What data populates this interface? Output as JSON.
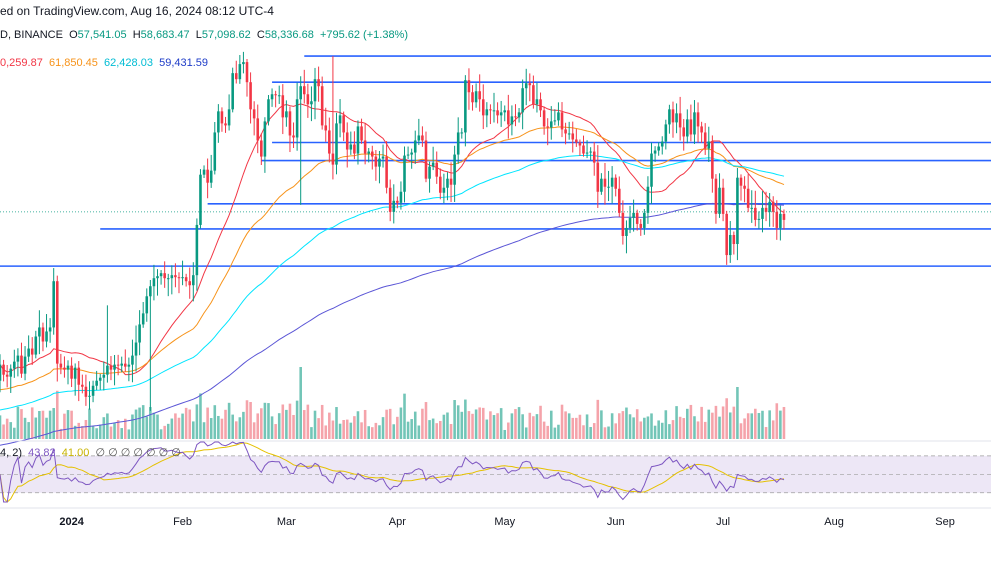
{
  "header": {
    "published": "ed on TradingView.com, Aug 16, 2024 08:12 UTC-4",
    "symbol_exchange": "D, BINANCE",
    "o_label": "O",
    "o_val": "57,541.05",
    "h_label": "H",
    "h_val": "58,683.47",
    "l_label": "L",
    "l_val": "57,098.62",
    "c_label": "C",
    "c_val": "58,336.68",
    "change": "+795.62 (+1.38%)",
    "ma1": "0,259.87",
    "ma2": "61,850.45",
    "ma3": "62,428.03",
    "ma4": "59,431.59"
  },
  "rsi": {
    "label": "4, 2)",
    "val1": "43.82",
    "val2": "41.00",
    "glyphs": "∅ ∅ ∅ ∅ ∅ ∅ ∅"
  },
  "colors": {
    "up": "#089981",
    "down": "#f23645",
    "ma_red": "#f23645",
    "ma_orange": "#f7931a",
    "ma_cyan": "#00e5ff",
    "ma_blue": "#5b56d6",
    "hline": "#2962ff",
    "rsi": "#7e57c2",
    "rsi_ma": "#e5c100"
  },
  "chart_data": {
    "type": "candlestick",
    "x_axis": {
      "labels": [
        "2024",
        "Feb",
        "Mar",
        "Apr",
        "May",
        "Jun",
        "Jul",
        "Aug",
        "Sep"
      ],
      "dates": [
        "2024-01-01",
        "2024-02-01",
        "2024-03-01",
        "2024-04-01",
        "2024-05-01",
        "2024-06-01",
        "2024-07-01",
        "2024-08-01",
        "2024-09-01"
      ],
      "range": [
        "2023-12-12",
        "2024-09-13"
      ]
    },
    "y_range": [
      36000,
      75000
    ],
    "horizontal_levels": [
      {
        "price": 73800,
        "from": "2024-03-06"
      },
      {
        "price": 71200,
        "from": "2024-02-26"
      },
      {
        "price": 65200,
        "from": "2024-02-26"
      },
      {
        "price": 63400,
        "from": "2024-02-23"
      },
      {
        "price": 59100,
        "from": "2024-02-08"
      },
      {
        "price": 56600,
        "from": "2024-01-09"
      },
      {
        "price": 52900,
        "from": "2023-12-12"
      }
    ],
    "closes": [
      43100,
      42100,
      41900,
      42700,
      43400,
      44000,
      42200,
      43900,
      44700,
      44100,
      45900,
      46800,
      45400,
      46400,
      46800,
      51400,
      43200,
      42800,
      42600,
      43000,
      41700,
      42800,
      41100,
      40900,
      39900,
      40000,
      41000,
      41500,
      41800,
      42100,
      43000,
      42600,
      43100,
      43000,
      43200,
      42900,
      43100,
      44000,
      45300,
      47100,
      48200,
      49900,
      50900,
      51700,
      51900,
      52200,
      51700,
      51700,
      52000,
      51800,
      51700,
      51800,
      51400,
      51000,
      52000,
      57000,
      62000,
      62500,
      61200,
      62400,
      66200,
      68300,
      67100,
      66900,
      68500,
      72100,
      71500,
      73000,
      73200,
      71200,
      68500,
      67600,
      65400,
      63800,
      67300,
      69500,
      70000,
      69900,
      69900,
      67700,
      68300,
      65900,
      65700,
      69500,
      70800,
      70000,
      69000,
      69300,
      71500,
      70800,
      66900,
      66400,
      64100,
      63000,
      67100,
      67900,
      66200,
      64500,
      65000,
      64100,
      66800,
      65400,
      64100,
      64300,
      63800,
      62800,
      63600,
      63800,
      60700,
      58300,
      59400,
      59200,
      60300,
      63900,
      64000,
      64200,
      65400,
      65900,
      65400,
      61600,
      62800,
      63200,
      61800,
      60200,
      60700,
      61600,
      61000,
      64000,
      66200,
      66200,
      71400,
      70200,
      69200,
      70300,
      69500,
      67900,
      68500,
      68400,
      68400,
      67900,
      68200,
      68400,
      67000,
      67800,
      67700,
      68200,
      70600,
      71100,
      70900,
      69000,
      69500,
      68400,
      66800,
      66700,
      67300,
      67400,
      68200,
      66500,
      66100,
      66100,
      65500,
      65200,
      64900,
      64100,
      64200,
      64300,
      63200,
      60300,
      61600,
      60800,
      60800,
      61700,
      60600,
      58200,
      55900,
      56700,
      57700,
      58200,
      57100,
      56700,
      58200,
      60800,
      64100,
      64400,
      64800,
      65300,
      67000,
      68500,
      67200,
      68100,
      66700,
      65800,
      67500,
      66000,
      68200,
      66800,
      66200,
      64600,
      65300,
      61600,
      58100,
      60700,
      58100,
      54000,
      56000,
      55100,
      61700,
      60900,
      60600,
      58700,
      58700,
      57500,
      57600,
      58700,
      58300,
      59300,
      58300,
      56700,
      58100,
      57500
    ],
    "ma_lines": [
      {
        "value": "0,259.87"
      },
      {
        "value": "61,850.45"
      },
      {
        "value": "62,428.03"
      },
      {
        "value": "59,431.59"
      }
    ],
    "rsi": {
      "range": [
        20,
        85
      ],
      "upper": 70,
      "lower": 30,
      "mid": 50,
      "last": 43.82,
      "last_ma": 41.0
    }
  }
}
